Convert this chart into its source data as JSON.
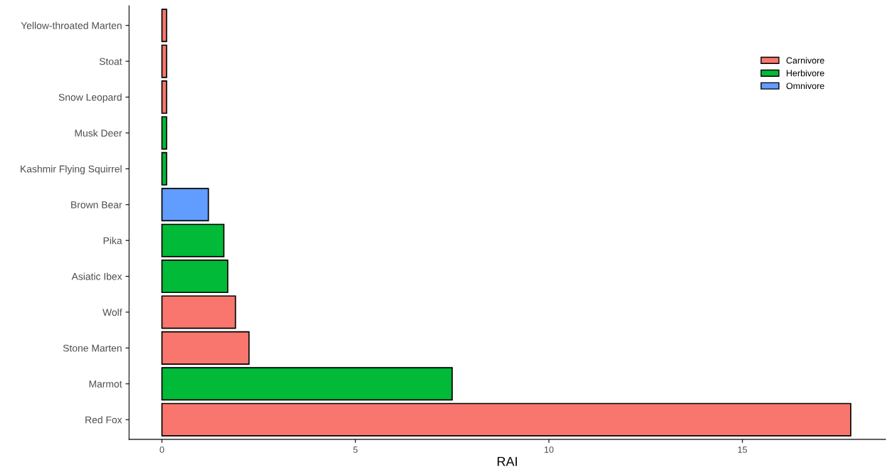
{
  "chart_data": {
    "type": "bar",
    "orientation": "horizontal",
    "xlabel": "RAI",
    "categories": [
      "Yellow-throated Marten",
      "Stoat",
      "Snow Leopard",
      "Musk Deer",
      "Kashmir Flying Squirrel",
      "Brown Bear",
      "Pika",
      "Asiatic Ibex",
      "Wolf",
      "Stone Marten",
      "Marmot",
      "Red Fox"
    ],
    "series": [
      {
        "name": "Carnivore",
        "color": "#f8766d",
        "values": [
          0.12,
          0.12,
          0.12,
          null,
          null,
          null,
          null,
          null,
          1.9,
          2.25,
          null,
          17.8
        ]
      },
      {
        "name": "Herbivore",
        "color": "#00ba38",
        "values": [
          null,
          null,
          null,
          0.12,
          0.12,
          null,
          1.6,
          1.7,
          null,
          null,
          7.5,
          null
        ]
      },
      {
        "name": "Omnivore",
        "color": "#619cff",
        "values": [
          null,
          null,
          null,
          null,
          null,
          1.2,
          null,
          null,
          null,
          null,
          null,
          null
        ]
      }
    ],
    "xlim": [
      -0.85,
      18.7
    ],
    "xticks": [
      0,
      5,
      10,
      15
    ],
    "grid": false,
    "legend": "top right"
  }
}
